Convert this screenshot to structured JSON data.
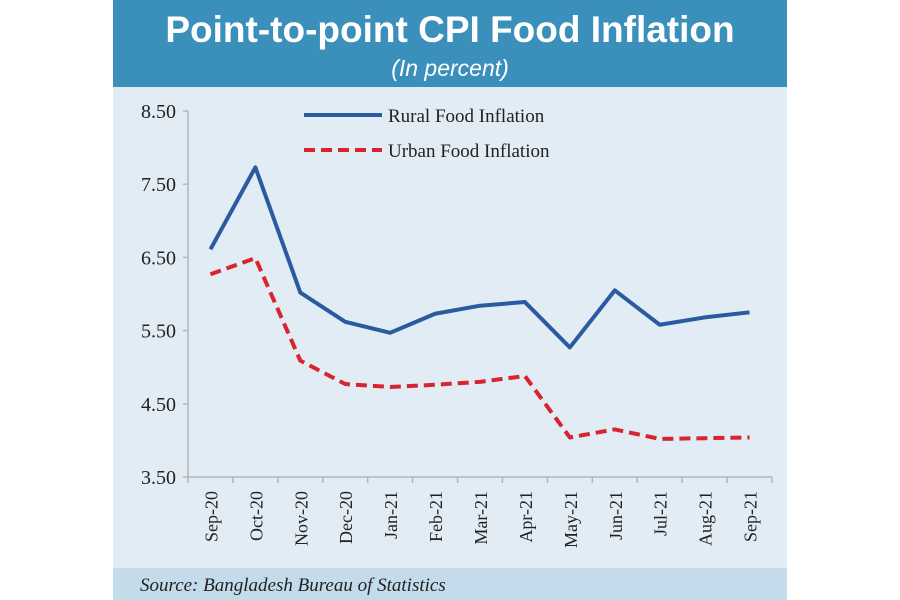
{
  "chart_data": {
    "type": "line",
    "title": "Point-to-point CPI Food Inflation",
    "subtitle": "(In percent)",
    "xlabel": "",
    "ylabel": "",
    "categories": [
      "Sep-20",
      "Oct-20",
      "Nov-20",
      "Dec-20",
      "Jan-21",
      "Feb-21",
      "Mar-21",
      "Apr-21",
      "May-21",
      "Jun-21",
      "Jul-21",
      "Aug-21",
      "Sep-21"
    ],
    "ylim": [
      3.5,
      8.5
    ],
    "yticks": [
      "3.50",
      "4.50",
      "5.50",
      "6.50",
      "7.50",
      "8.50"
    ],
    "grid": false,
    "legend_placement": "top-center",
    "series": [
      {
        "name": "Rural Food Inflation",
        "color": "#2c5aa0",
        "style": "solid",
        "values": [
          6.61,
          7.73,
          6.02,
          5.62,
          5.47,
          5.73,
          5.84,
          5.89,
          5.27,
          6.05,
          5.58,
          5.68,
          5.75
        ]
      },
      {
        "name": "Urban Food Inflation",
        "color": "#d9232e",
        "style": "dashed",
        "values": [
          6.27,
          6.49,
          5.09,
          4.77,
          4.73,
          4.76,
          4.8,
          4.88,
          4.04,
          4.15,
          4.02,
          4.03,
          4.04
        ]
      }
    ],
    "source": "Source: Bangladesh Bureau of Statistics"
  },
  "colors": {
    "banner": "#3a8fbb",
    "plot_bg": "#e1ecf5",
    "source_bg": "#c3dbea",
    "axis": "#b5b5b5"
  }
}
